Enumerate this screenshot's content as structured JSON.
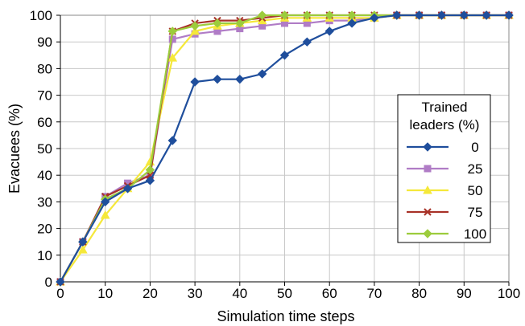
{
  "chart_data": {
    "type": "line",
    "xlabel": "Simulation time steps",
    "ylabel": "Evacuees (%)",
    "xlim": [
      0,
      100
    ],
    "ylim": [
      0,
      100
    ],
    "xticks": [
      "0",
      "10",
      "20",
      "30",
      "40",
      "50",
      "60",
      "70",
      "80",
      "90",
      "100"
    ],
    "yticks": [
      "0",
      "10",
      "20",
      "30",
      "40",
      "50",
      "60",
      "70",
      "80",
      "90",
      "100"
    ],
    "grid": true,
    "legend": {
      "title_line1": "Trained",
      "title_line2": "leaders (%)",
      "placement": "right"
    },
    "x": [
      0,
      5,
      10,
      15,
      20,
      25,
      30,
      35,
      40,
      45,
      50,
      55,
      60,
      65,
      70,
      75,
      80,
      85,
      90,
      95,
      100
    ],
    "series": [
      {
        "name": "0",
        "color": "#1f4e9c",
        "marker": "diamond",
        "values": [
          0,
          15,
          30,
          35,
          38,
          53,
          75,
          76,
          76,
          78,
          85,
          90,
          94,
          97,
          99,
          100,
          100,
          100,
          100,
          100,
          100
        ]
      },
      {
        "name": "25",
        "color": "#b07cc6",
        "marker": "square",
        "values": [
          0,
          15,
          32,
          37,
          40,
          91,
          93,
          94,
          95,
          96,
          97,
          97,
          98,
          98,
          99,
          100,
          100,
          100,
          100,
          100,
          100
        ]
      },
      {
        "name": "50",
        "color": "#f5e83a",
        "marker": "triangle",
        "values": [
          0,
          12,
          25,
          35,
          45,
          84,
          94,
          96,
          97,
          98,
          99,
          99,
          99,
          99,
          99,
          100,
          100,
          100,
          100,
          100,
          100
        ]
      },
      {
        "name": "75",
        "color": "#a83228",
        "marker": "x",
        "values": [
          0,
          15,
          32,
          36,
          40,
          94,
          97,
          98,
          98,
          99,
          100,
          100,
          100,
          100,
          100,
          100,
          100,
          100,
          100,
          100,
          100
        ]
      },
      {
        "name": "100",
        "color": "#9ccc3c",
        "marker": "diamond",
        "values": [
          0,
          15,
          31,
          35,
          42,
          94,
          96,
          97,
          97,
          100,
          100,
          100,
          100,
          100,
          100,
          100,
          100,
          100,
          100,
          100,
          100
        ]
      }
    ]
  }
}
